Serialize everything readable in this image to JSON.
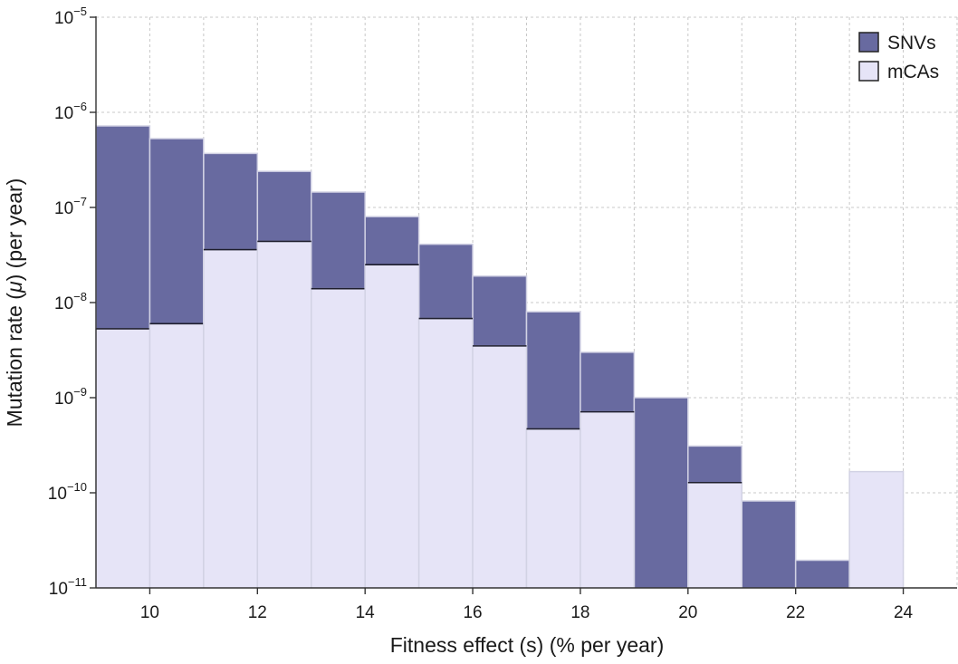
{
  "chart_data": {
    "type": "bar",
    "title": "",
    "xlabel": "Fitness effect (s) (% per year)",
    "ylabel_prefix": "Mutation rate (",
    "ylabel_symbol": "μ",
    "ylabel_suffix": ") (per year)",
    "y_scale": "log",
    "ylim": [
      1e-11,
      1e-05
    ],
    "xlim": [
      9,
      25
    ],
    "bin_width": 1,
    "bin_starts": [
      9,
      10,
      11,
      12,
      13,
      14,
      15,
      16,
      17,
      18,
      19,
      20,
      21,
      22,
      23
    ],
    "x_ticks": [
      10,
      12,
      14,
      16,
      18,
      20,
      22,
      24
    ],
    "x_tick_labels": [
      "10",
      "12",
      "14",
      "16",
      "18",
      "20",
      "22",
      "24"
    ],
    "y_ticks": [
      {
        "value": 1e-05,
        "base": "10",
        "exp": "−5"
      },
      {
        "value": 1e-06,
        "base": "10",
        "exp": "−6"
      },
      {
        "value": 1e-07,
        "base": "10",
        "exp": "−7"
      },
      {
        "value": 1e-08,
        "base": "10",
        "exp": "−8"
      },
      {
        "value": 1e-09,
        "base": "10",
        "exp": "−9"
      },
      {
        "value": 1e-10,
        "base": "10",
        "exp": "−10"
      },
      {
        "value": 1e-11,
        "base": "10",
        "exp": "−11"
      }
    ],
    "grid": true,
    "legend_position": "top-right",
    "series": [
      {
        "name": "SNVs",
        "color": "#686aa0",
        "values": [
          7.2e-07,
          5.3e-07,
          3.7e-07,
          2.4e-07,
          1.45e-07,
          8e-08,
          4.1e-08,
          1.9e-08,
          8e-09,
          3e-09,
          1e-09,
          3.1e-10,
          8.2e-11,
          1.95e-11,
          null
        ]
      },
      {
        "name": "mCAs",
        "color": "#e6e4f7",
        "values": [
          5.3e-09,
          6e-09,
          3.6e-08,
          4.4e-08,
          1.4e-08,
          2.5e-08,
          6.8e-09,
          3.5e-09,
          4.7e-10,
          7.1e-10,
          null,
          1.28e-10,
          null,
          null,
          1.67e-10
        ]
      }
    ]
  }
}
